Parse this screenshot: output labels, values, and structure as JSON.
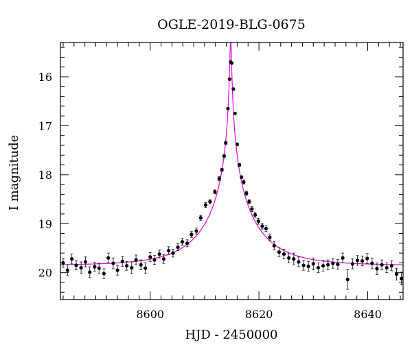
{
  "chart_data": {
    "type": "scatter",
    "title": "OGLE-2019-BLG-0675",
    "xlabel": "HJD - 2450000",
    "ylabel": "I magnitude",
    "xlim": [
      8583.5,
      8646.5
    ],
    "ylim": [
      20.55,
      15.3
    ],
    "y_inverted": true,
    "xticks_major": [
      8600,
      8620,
      8640
    ],
    "yticks_major": [
      16,
      17,
      18,
      19,
      20
    ],
    "grid": false,
    "legend": "none",
    "colors": {
      "points": "#000000",
      "model": "#e600e6"
    },
    "model": {
      "t0": 8614.8,
      "u0": 0.014,
      "tE": 9.5,
      "baseline": 19.85
    },
    "series": [
      {
        "kind": "data",
        "x": [
          8584.0,
          8584.8,
          8585.6,
          8586.4,
          8587.3,
          8588.1,
          8588.9,
          8589.8,
          8590.6,
          8591.5,
          8592.3,
          8593.2,
          8594.0,
          8594.9,
          8595.7,
          8596.6,
          8597.4,
          8598.3,
          8599.1,
          8600.0,
          8600.8,
          8601.7,
          8602.5,
          8603.4,
          8604.2,
          8605.1,
          8605.9,
          8606.8,
          8607.6,
          8608.5,
          8609.3,
          8610.2,
          8611.0,
          8611.9,
          8612.7,
          8613.2,
          8613.6,
          8613.9,
          8614.3,
          8614.6,
          8614.8,
          8615.0,
          8615.3,
          8615.6,
          8616.0,
          8616.4,
          8616.8,
          8617.2,
          8617.7,
          8618.2,
          8618.7,
          8619.3,
          8619.9,
          8620.6,
          8621.3,
          8622.0,
          8622.8,
          8623.7,
          8624.6,
          8625.5,
          8626.4,
          8627.3,
          8628.2,
          8629.1,
          8630.0,
          8630.9,
          8631.8,
          8632.7,
          8633.6,
          8634.5,
          8635.4,
          8636.3,
          8637.2,
          8638.1,
          8639.0,
          8639.9,
          8640.8,
          8641.7,
          8642.6,
          8643.5,
          8644.4,
          8645.3,
          8646.2
        ],
        "y": [
          19.8,
          19.95,
          19.72,
          19.85,
          19.9,
          19.78,
          19.99,
          19.88,
          19.91,
          20.02,
          19.7,
          19.81,
          19.95,
          19.77,
          19.86,
          19.9,
          19.74,
          19.84,
          19.91,
          19.68,
          19.74,
          19.62,
          19.72,
          19.55,
          19.6,
          19.48,
          19.37,
          19.4,
          19.22,
          19.15,
          18.88,
          18.62,
          18.55,
          18.35,
          18.08,
          17.9,
          17.62,
          17.35,
          16.65,
          16.05,
          15.7,
          15.72,
          16.25,
          16.75,
          17.38,
          17.8,
          18.05,
          18.15,
          18.38,
          18.55,
          18.7,
          18.82,
          18.95,
          19.05,
          19.1,
          19.28,
          19.45,
          19.58,
          19.62,
          19.7,
          19.72,
          19.78,
          19.85,
          19.87,
          19.82,
          19.9,
          19.86,
          19.84,
          19.81,
          19.83,
          19.7,
          20.14,
          19.82,
          19.75,
          19.76,
          19.71,
          19.81,
          19.92,
          19.84,
          19.9,
          19.86,
          20.03,
          20.12
        ],
        "yerr": [
          0.09,
          0.11,
          0.1,
          0.09,
          0.12,
          0.1,
          0.11,
          0.09,
          0.1,
          0.1,
          0.1,
          0.11,
          0.1,
          0.1,
          0.09,
          0.12,
          0.1,
          0.1,
          0.11,
          0.09,
          0.09,
          0.08,
          0.09,
          0.08,
          0.08,
          0.07,
          0.07,
          0.07,
          0.06,
          0.06,
          0.05,
          0.05,
          0.04,
          0.04,
          0.04,
          0.03,
          0.03,
          0.03,
          0.02,
          0.02,
          0.02,
          0.02,
          0.02,
          0.02,
          0.03,
          0.03,
          0.03,
          0.04,
          0.04,
          0.04,
          0.05,
          0.05,
          0.06,
          0.06,
          0.06,
          0.07,
          0.08,
          0.09,
          0.1,
          0.1,
          0.12,
          0.1,
          0.1,
          0.1,
          0.12,
          0.1,
          0.11,
          0.1,
          0.1,
          0.1,
          0.1,
          0.2,
          0.1,
          0.1,
          0.1,
          0.1,
          0.11,
          0.12,
          0.1,
          0.1,
          0.1,
          0.12,
          0.13
        ]
      }
    ]
  }
}
